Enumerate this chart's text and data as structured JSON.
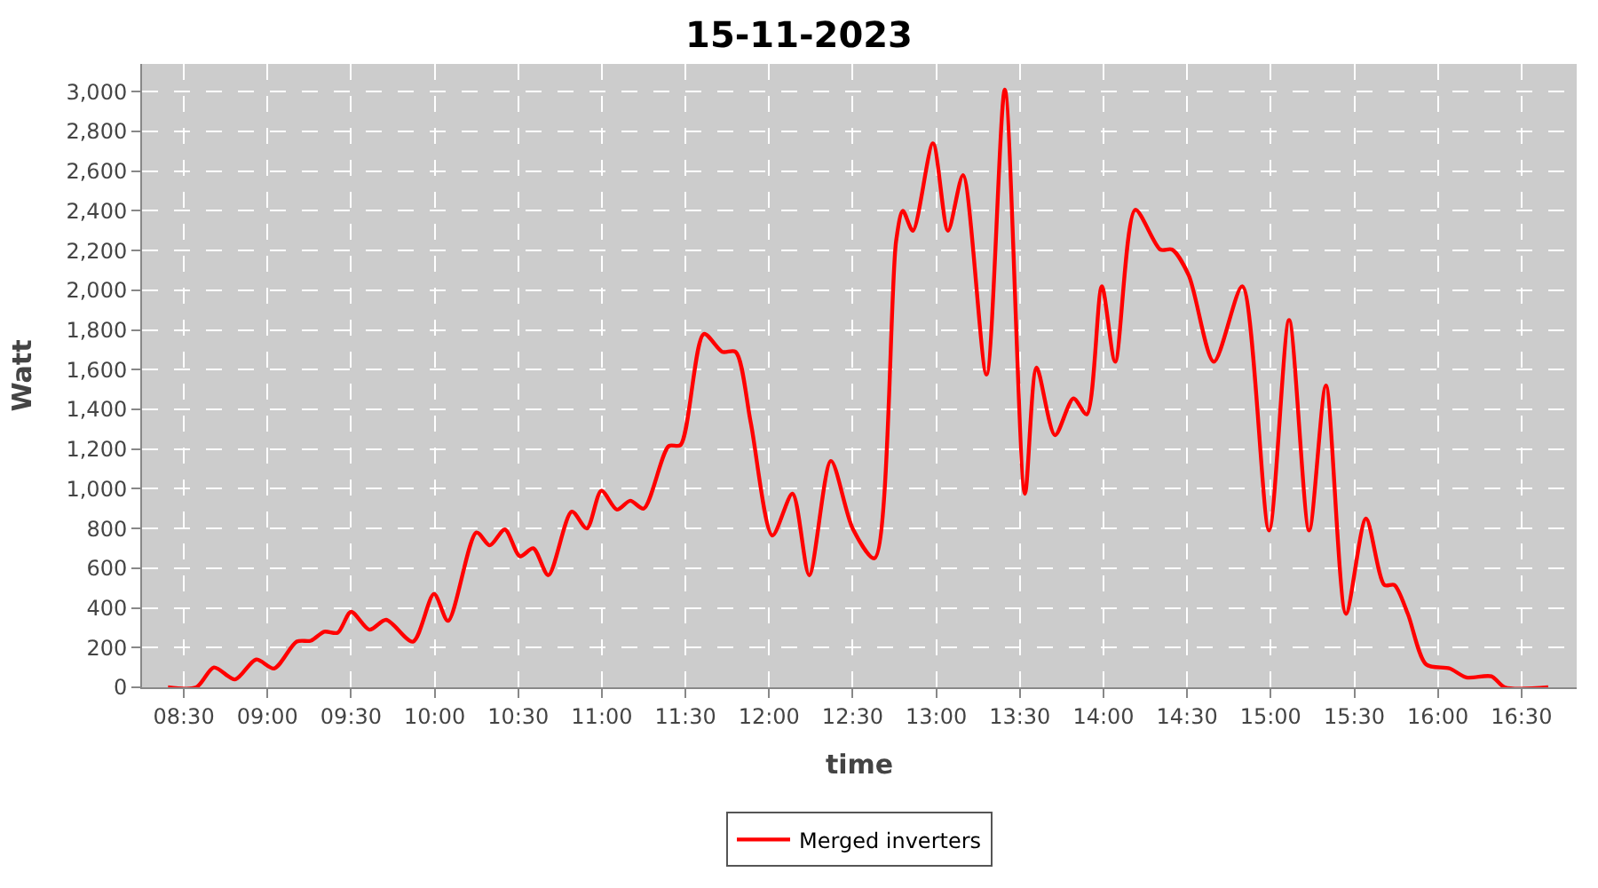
{
  "chart_data": {
    "type": "line",
    "title": "15-11-2023",
    "xlabel": "time",
    "ylabel": "Watt",
    "series": [
      {
        "name": "Merged inverters",
        "color": "#ff0000",
        "x": [
          8.405,
          8.574,
          8.68,
          8.806,
          8.932,
          9.04,
          9.175,
          9.26,
          9.34,
          9.42,
          9.5,
          9.61,
          9.71,
          9.87,
          9.996,
          10.08,
          10.25,
          10.33,
          10.42,
          10.51,
          10.59,
          10.68,
          10.82,
          10.91,
          10.997,
          11.09,
          11.17,
          11.25,
          11.4,
          11.47,
          11.61,
          11.72,
          11.8,
          11.89,
          12.02,
          12.14,
          12.24,
          12.37,
          12.5,
          12.63,
          12.76,
          12.8,
          12.86,
          12.98,
          13.07,
          13.16,
          13.3,
          13.41,
          13.53,
          13.6,
          13.71,
          13.82,
          13.9,
          13.99,
          14.07,
          14.19,
          14.34,
          14.41,
          14.51,
          14.66,
          14.83,
          14.99,
          15.11,
          15.23,
          15.33,
          15.45,
          15.57,
          15.68,
          15.74,
          15.82,
          15.93,
          16.07,
          16.17,
          16.32,
          16.4,
          16.66
        ],
        "values": [
          0,
          0,
          100,
          40,
          140,
          95,
          230,
          235,
          280,
          275,
          380,
          290,
          340,
          230,
          470,
          335,
          780,
          715,
          795,
          660,
          700,
          565,
          885,
          800,
          990,
          895,
          940,
          900,
          1215,
          1220,
          1780,
          1690,
          1690,
          1335,
          765,
          975,
          565,
          1140,
          800,
          650,
          2250,
          2400,
          2300,
          2740,
          2300,
          2580,
          1575,
          3010,
          975,
          1610,
          1270,
          1455,
          1375,
          2020,
          1640,
          2405,
          2205,
          2205,
          2075,
          1640,
          2020,
          790,
          1850,
          790,
          1520,
          370,
          850,
          515,
          515,
          370,
          115,
          95,
          50,
          55,
          0,
          0
        ]
      }
    ],
    "xlim": [
      8.25,
      16.83
    ],
    "xticks": [
      {
        "value": 8.5,
        "label": "08:30"
      },
      {
        "value": 9,
        "label": "09:00"
      },
      {
        "value": 9.5,
        "label": "09:30"
      },
      {
        "value": 10,
        "label": "10:00"
      },
      {
        "value": 10.5,
        "label": "10:30"
      },
      {
        "value": 11,
        "label": "11:00"
      },
      {
        "value": 11.5,
        "label": "11:30"
      },
      {
        "value": 12,
        "label": "12:00"
      },
      {
        "value": 12.5,
        "label": "12:30"
      },
      {
        "value": 13,
        "label": "13:00"
      },
      {
        "value": 13.5,
        "label": "13:30"
      },
      {
        "value": 14,
        "label": "14:00"
      },
      {
        "value": 14.5,
        "label": "14:30"
      },
      {
        "value": 15,
        "label": "15:00"
      },
      {
        "value": 15.5,
        "label": "15:30"
      },
      {
        "value": 16,
        "label": "16:00"
      },
      {
        "value": 16.5,
        "label": "16:30"
      }
    ],
    "ylim": [
      0,
      3140
    ],
    "yticks": [
      0,
      200,
      400,
      600,
      800,
      {
        "value": 1000,
        "label": "1,000"
      },
      {
        "value": 1200,
        "label": "1,200"
      },
      {
        "value": 1400,
        "label": "1,400"
      },
      {
        "value": 1600,
        "label": "1,600"
      },
      {
        "value": 1800,
        "label": "1,800"
      },
      {
        "value": 2000,
        "label": "2,000"
      },
      {
        "value": 2200,
        "label": "2,200"
      },
      {
        "value": 2400,
        "label": "2,400"
      },
      {
        "value": 2600,
        "label": "2,600"
      },
      {
        "value": 2800,
        "label": "2,800"
      },
      {
        "value": 3000,
        "label": "3,000"
      }
    ],
    "grid": true,
    "legend": "bottom",
    "line_style": "solid",
    "marker": "none"
  }
}
